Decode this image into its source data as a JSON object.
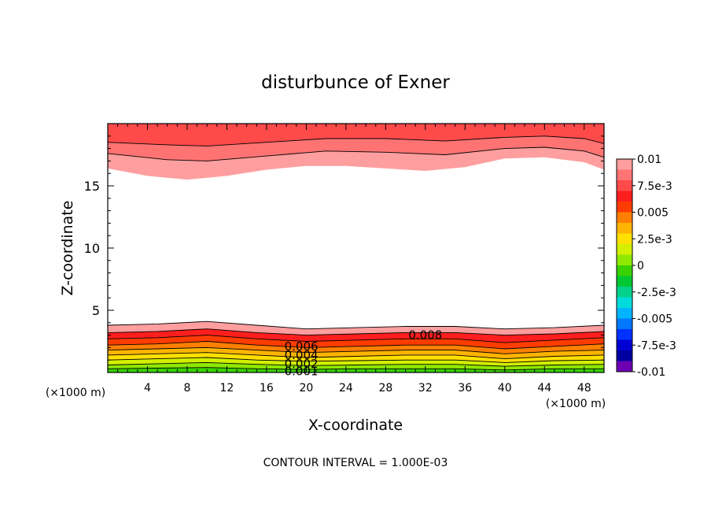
{
  "chart_data": {
    "type": "heatmap",
    "title": "disturbunce of Exner",
    "xlabel": "X-coordinate",
    "ylabel": "Z-coordinate",
    "x_unit_left": "(×1000 m)",
    "x_unit_right": "(×1000 m)",
    "xlim": [
      0,
      50
    ],
    "ylim": [
      0,
      20
    ],
    "x_ticks": [
      {
        "value": 4,
        "label": "4"
      },
      {
        "value": 8,
        "label": "8"
      },
      {
        "value": 12,
        "label": "12"
      },
      {
        "value": 16,
        "label": "16"
      },
      {
        "value": 20,
        "label": "20"
      },
      {
        "value": 24,
        "label": "24"
      },
      {
        "value": 28,
        "label": "28"
      },
      {
        "value": 32,
        "label": "32"
      },
      {
        "value": 36,
        "label": "36"
      },
      {
        "value": 40,
        "label": "40"
      },
      {
        "value": 44,
        "label": "44"
      },
      {
        "value": 48,
        "label": "48"
      }
    ],
    "y_ticks": [
      {
        "value": 5,
        "label": "5"
      },
      {
        "value": 10,
        "label": "10"
      },
      {
        "value": 15,
        "label": "15"
      }
    ],
    "contour_interval_text": "CONTOUR INTERVAL = 1.000E-03",
    "contour_labels": [
      {
        "text": "0.008",
        "x": 32,
        "z": 3.0
      },
      {
        "text": "0.006",
        "x": 19.5,
        "z": 2.1
      },
      {
        "text": "0.004",
        "x": 19.5,
        "z": 1.4
      },
      {
        "text": "0.002",
        "x": 19.5,
        "z": 0.7
      },
      {
        "text": "0.001",
        "x": 19.5,
        "z": 0.1
      }
    ],
    "upper_region": {
      "lower_edge_z": [
        [
          0,
          16.4
        ],
        [
          4,
          15.8
        ],
        [
          8,
          15.5
        ],
        [
          12,
          15.8
        ],
        [
          16,
          16.3
        ],
        [
          20,
          16.6
        ],
        [
          24,
          16.6
        ],
        [
          28,
          16.4
        ],
        [
          32,
          16.2
        ],
        [
          36,
          16.5
        ],
        [
          40,
          17.2
        ],
        [
          44,
          17.3
        ],
        [
          48,
          16.9
        ],
        [
          50,
          16.3
        ]
      ],
      "contours_z": [
        [
          [
            0,
            18.5
          ],
          [
            6,
            18.3
          ],
          [
            10,
            18.2
          ],
          [
            16,
            18.5
          ],
          [
            22,
            18.8
          ],
          [
            28,
            18.8
          ],
          [
            34,
            18.6
          ],
          [
            40,
            18.9
          ],
          [
            44,
            19.0
          ],
          [
            48,
            18.8
          ],
          [
            50,
            18.4
          ]
        ],
        [
          [
            0,
            17.6
          ],
          [
            6,
            17.1
          ],
          [
            10,
            17.0
          ],
          [
            16,
            17.4
          ],
          [
            22,
            17.8
          ],
          [
            28,
            17.7
          ],
          [
            34,
            17.5
          ],
          [
            40,
            18.0
          ],
          [
            44,
            18.1
          ],
          [
            48,
            17.8
          ],
          [
            50,
            17.3
          ]
        ]
      ]
    },
    "lower_contours_z": [
      [
        [
          0,
          3.8
        ],
        [
          5,
          3.9
        ],
        [
          10,
          4.1
        ],
        [
          15,
          3.8
        ],
        [
          20,
          3.5
        ],
        [
          25,
          3.6
        ],
        [
          30,
          3.7
        ],
        [
          35,
          3.7
        ],
        [
          40,
          3.5
        ],
        [
          45,
          3.6
        ],
        [
          50,
          3.8
        ]
      ],
      [
        [
          0,
          3.2
        ],
        [
          5,
          3.3
        ],
        [
          10,
          3.5
        ],
        [
          15,
          3.2
        ],
        [
          20,
          3.0
        ],
        [
          25,
          3.1
        ],
        [
          30,
          3.2
        ],
        [
          35,
          3.2
        ],
        [
          40,
          3.0
        ],
        [
          45,
          3.1
        ],
        [
          50,
          3.3
        ]
      ],
      [
        [
          0,
          2.7
        ],
        [
          5,
          2.8
        ],
        [
          10,
          3.0
        ],
        [
          15,
          2.7
        ],
        [
          20,
          2.5
        ],
        [
          25,
          2.6
        ],
        [
          30,
          2.7
        ],
        [
          35,
          2.7
        ],
        [
          40,
          2.4
        ],
        [
          45,
          2.6
        ],
        [
          50,
          2.8
        ]
      ],
      [
        [
          0,
          2.2
        ],
        [
          5,
          2.3
        ],
        [
          10,
          2.5
        ],
        [
          15,
          2.2
        ],
        [
          20,
          2.0
        ],
        [
          25,
          2.1
        ],
        [
          30,
          2.2
        ],
        [
          35,
          2.2
        ],
        [
          40,
          1.9
        ],
        [
          45,
          2.1
        ],
        [
          50,
          2.3
        ]
      ],
      [
        [
          0,
          1.8
        ],
        [
          5,
          1.9
        ],
        [
          10,
          2.0
        ],
        [
          15,
          1.8
        ],
        [
          20,
          1.6
        ],
        [
          25,
          1.7
        ],
        [
          30,
          1.8
        ],
        [
          35,
          1.8
        ],
        [
          40,
          1.5
        ],
        [
          45,
          1.7
        ],
        [
          50,
          1.8
        ]
      ],
      [
        [
          0,
          1.4
        ],
        [
          5,
          1.5
        ],
        [
          10,
          1.6
        ],
        [
          15,
          1.4
        ],
        [
          20,
          1.2
        ],
        [
          25,
          1.3
        ],
        [
          30,
          1.4
        ],
        [
          35,
          1.4
        ],
        [
          40,
          1.1
        ],
        [
          45,
          1.3
        ],
        [
          50,
          1.4
        ]
      ],
      [
        [
          0,
          1.0
        ],
        [
          5,
          1.1
        ],
        [
          10,
          1.2
        ],
        [
          15,
          1.0
        ],
        [
          20,
          0.9
        ],
        [
          25,
          0.95
        ],
        [
          30,
          1.0
        ],
        [
          35,
          1.0
        ],
        [
          40,
          0.8
        ],
        [
          45,
          0.95
        ],
        [
          50,
          1.0
        ]
      ],
      [
        [
          0,
          0.6
        ],
        [
          5,
          0.7
        ],
        [
          10,
          0.8
        ],
        [
          15,
          0.65
        ],
        [
          20,
          0.55
        ],
        [
          25,
          0.6
        ],
        [
          30,
          0.65
        ],
        [
          35,
          0.65
        ],
        [
          40,
          0.5
        ],
        [
          45,
          0.6
        ],
        [
          50,
          0.65
        ]
      ],
      [
        [
          0,
          0.3
        ],
        [
          5,
          0.35
        ],
        [
          10,
          0.4
        ],
        [
          15,
          0.3
        ],
        [
          20,
          0.25
        ],
        [
          25,
          0.3
        ],
        [
          30,
          0.3
        ],
        [
          35,
          0.3
        ],
        [
          40,
          0.2
        ],
        [
          45,
          0.3
        ],
        [
          50,
          0.3
        ]
      ]
    ],
    "colorbar": {
      "labels": [
        "0.01",
        "7.5e-3",
        "0.005",
        "2.5e-3",
        "0",
        "-2.5e-3",
        "-0.005",
        "-7.5e-3",
        "-0.01"
      ],
      "colors": [
        "#ff9e9e",
        "#ff7373",
        "#ff4a4a",
        "#ff1e1e",
        "#ff3c00",
        "#ff7f00",
        "#ffb400",
        "#ffe000",
        "#d2f000",
        "#8ee800",
        "#39d200",
        "#00c832",
        "#00d28c",
        "#00dcdc",
        "#00b4ff",
        "#0078ff",
        "#0032ff",
        "#0000d2",
        "#0000a0",
        "#6e00b4"
      ]
    }
  }
}
